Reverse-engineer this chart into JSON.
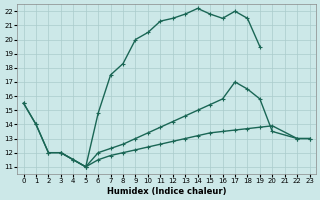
{
  "xlabel": "Humidex (Indice chaleur)",
  "bg_color": "#cce8e8",
  "grid_color": "#aacccc",
  "line_color": "#1a6655",
  "line1_x": [
    0,
    1,
    2,
    3,
    4,
    5,
    6,
    7,
    8,
    9,
    10,
    11,
    12,
    13,
    14,
    15,
    16,
    17,
    18,
    19
  ],
  "line1_y": [
    15.5,
    14.0,
    12.0,
    12.0,
    11.5,
    11.0,
    14.8,
    17.5,
    18.3,
    20.0,
    20.5,
    21.3,
    21.5,
    21.8,
    22.2,
    21.8,
    21.5,
    22.0,
    21.5,
    19.5
  ],
  "line2_x": [
    0,
    1,
    2,
    3,
    4,
    5,
    6,
    7,
    8,
    9,
    10,
    11,
    12,
    13,
    14,
    15,
    16,
    17,
    18,
    19,
    20,
    22,
    23
  ],
  "line2_y": [
    15.5,
    14.0,
    12.0,
    12.0,
    11.5,
    11.0,
    12.0,
    12.3,
    12.6,
    13.0,
    13.4,
    13.8,
    14.2,
    14.6,
    15.0,
    15.4,
    15.8,
    17.0,
    16.5,
    15.8,
    13.5,
    13.0,
    13.0
  ],
  "line3_x": [
    3,
    5,
    6,
    7,
    8,
    9,
    10,
    11,
    12,
    13,
    14,
    15,
    16,
    17,
    18,
    19,
    20,
    22,
    23
  ],
  "line3_y": [
    12.0,
    11.0,
    11.5,
    11.8,
    12.0,
    12.2,
    12.4,
    12.6,
    12.8,
    13.0,
    13.2,
    13.4,
    13.5,
    13.6,
    13.7,
    13.8,
    13.9,
    13.0,
    13.0
  ]
}
